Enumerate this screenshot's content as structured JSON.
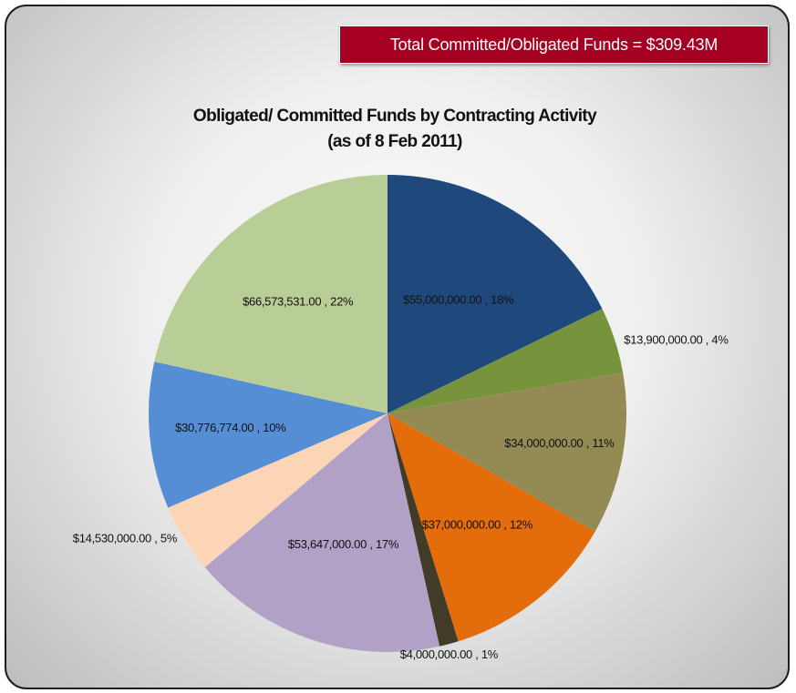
{
  "banner": {
    "text": "Total Committed/Obligated Funds = $309.43M"
  },
  "chart_data": {
    "type": "pie",
    "title": [
      "Obligated/ Committed Funds by Contracting Activity",
      "(as of 8 Feb 2011)"
    ],
    "slices": [
      {
        "value": 55000000,
        "percent": 18,
        "label": "$55,000,000.00 , 18%",
        "color": "#1f497d"
      },
      {
        "value": 13900000,
        "percent": 4,
        "label": "$13,900,000.00 , 4%",
        "color": "#77933c"
      },
      {
        "value": 34000000,
        "percent": 11,
        "label": "$34,000,000.00 , 11%",
        "color": "#948a54"
      },
      {
        "value": 37000000,
        "percent": 12,
        "label": "$37,000,000.00 , 12%",
        "color": "#e46c0a"
      },
      {
        "value": 4000000,
        "percent": 1,
        "label": "$4,000,000.00 , 1%",
        "color": "#403c28"
      },
      {
        "value": 53647000,
        "percent": 17,
        "label": "$53,647,000.00 , 17%",
        "color": "#b2a1c7"
      },
      {
        "value": 14530000,
        "percent": 5,
        "label": "$14,530,000.00 , 5%",
        "color": "#fbd5b5"
      },
      {
        "value": 30776774,
        "percent": 10,
        "label": "$30,776,774.00 , 10%",
        "color": "#558ed5"
      },
      {
        "value": 66573531,
        "percent": 22,
        "label": "$66,573,531.00 , 22%",
        "color": "#b9cd96"
      }
    ]
  }
}
